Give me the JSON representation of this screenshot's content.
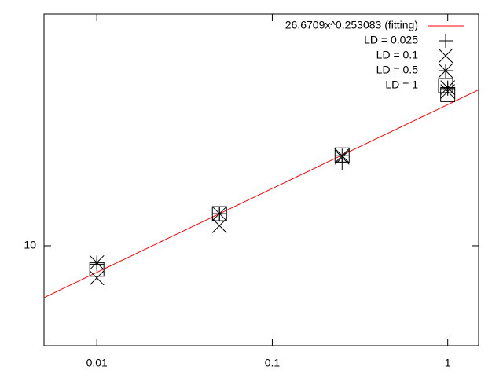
{
  "chart_data": {
    "type": "scatter",
    "xlog": true,
    "ylog": true,
    "xlim": [
      0.005,
      1.5
    ],
    "ylim": [
      5,
      50
    ],
    "xticks": [
      0.01,
      0.1,
      1
    ],
    "yticks": [
      10
    ],
    "legend": "top-right",
    "fit": {
      "label": "26.6709x^0.253083 (fitting)",
      "a": 26.6709,
      "b": 0.253083,
      "color": "#ff0000"
    },
    "x": [
      0.01,
      0.05,
      0.25,
      1
    ],
    "series": [
      {
        "name": "LD = 0.025",
        "marker": "plus",
        "color": "#000000",
        "values": [
          8.8,
          12.5,
          17.8,
          29.8
        ]
      },
      {
        "name": "LD = 0.1",
        "marker": "cross",
        "color": "#000000",
        "values": [
          8.0,
          11.5,
          18.5,
          29.2
        ]
      },
      {
        "name": "LD = 0.5",
        "marker": "star",
        "color": "#000000",
        "values": [
          8.9,
          12.5,
          18.7,
          30.0
        ]
      },
      {
        "name": "LD = 1",
        "marker": "box",
        "color": "#000000",
        "values": [
          8.5,
          12.5,
          18.8,
          28.6
        ]
      }
    ]
  }
}
